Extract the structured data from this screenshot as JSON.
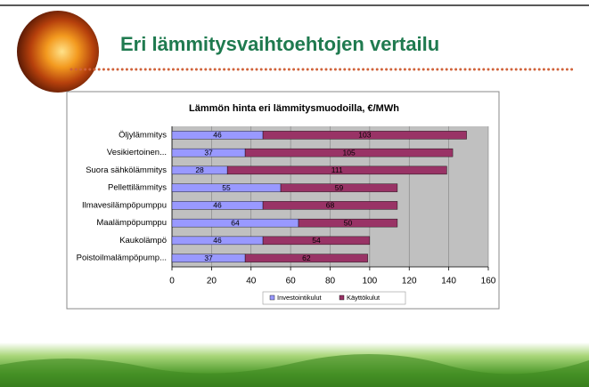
{
  "slide": {
    "title": "Eri lämmitysvaihtoehtojen vertailu"
  },
  "chart_data": {
    "type": "stacked_barh",
    "title": "Lämmön hinta eri lämmitysmuodoilla, €/MWh",
    "categories": [
      "Öljylämmitys",
      "Vesikiertoinen...",
      "Suora sähkölämmitys",
      "Pellettilämmitys",
      "Ilmavesilämpöpumppu",
      "Maalämpöpumppu",
      "Kaukolämpö",
      "Poistoilmalämpöpump..."
    ],
    "series": [
      {
        "name": "Investointikulut",
        "color": "#9999ff",
        "values": [
          46,
          37,
          28,
          55,
          46,
          64,
          46,
          37
        ]
      },
      {
        "name": "Käyttökulut",
        "color": "#993366",
        "values": [
          103,
          105,
          111,
          59,
          68,
          50,
          54,
          62
        ]
      }
    ],
    "xlim": [
      0,
      160
    ],
    "xticks": [
      0,
      20,
      40,
      60,
      80,
      100,
      120,
      140,
      160
    ],
    "grid": true,
    "plot_background": "#c0c0c0",
    "legend": "bottom"
  }
}
